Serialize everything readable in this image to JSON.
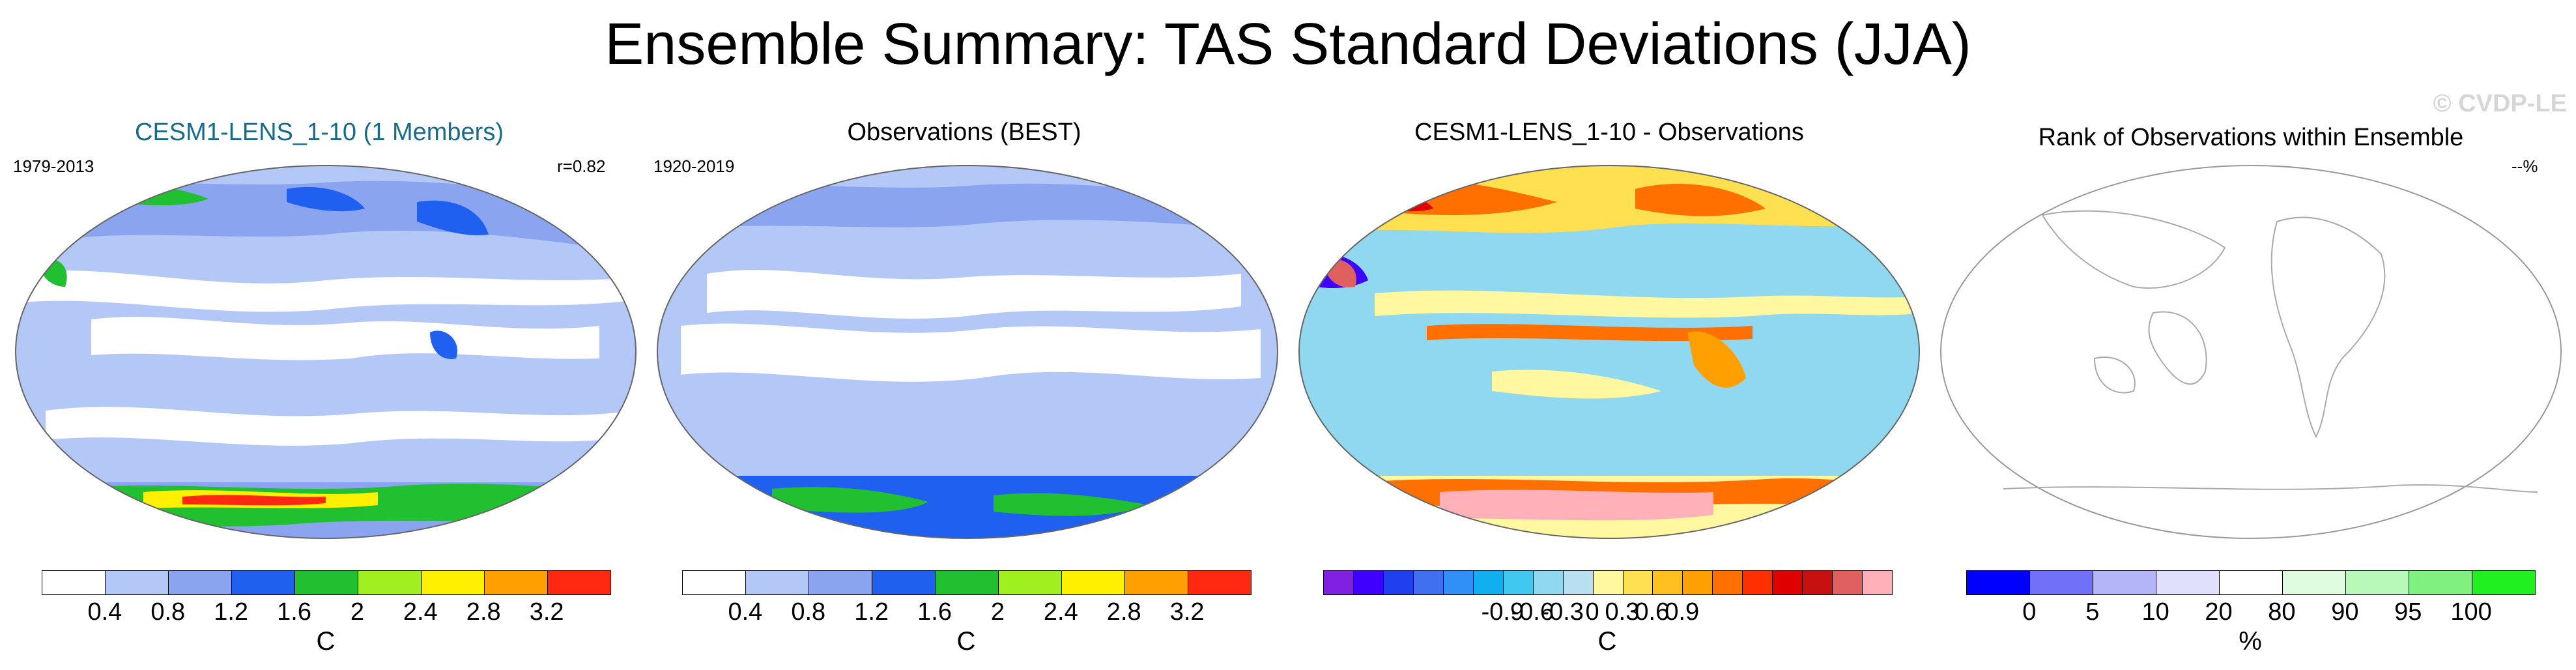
{
  "title": "Ensemble Summary: TAS Standard Deviations (JJA)",
  "watermark": "© CVDP-LE",
  "panels": [
    {
      "title": "CESM1-LENS_1-10 (1 Members)",
      "title_color": "#1a6a8a",
      "left_label": "1979-2013",
      "right_label": "r=0.82",
      "colorbar": {
        "colors": [
          "#ffffff",
          "#b4c8f8",
          "#8aa4f0",
          "#2060f0",
          "#20c030",
          "#a0f020",
          "#fff000",
          "#ffa000",
          "#ff2810"
        ],
        "ticks": [
          "0.4",
          "0.8",
          "1.2",
          "1.6",
          "2",
          "2.4",
          "2.8",
          "3.2"
        ],
        "unit": "C"
      }
    },
    {
      "title": "Observations (BEST)",
      "title_color": "#000000",
      "left_label": "1920-2019",
      "right_label": "",
      "colorbar": {
        "colors": [
          "#ffffff",
          "#b4c8f8",
          "#8aa4f0",
          "#2060f0",
          "#20c030",
          "#a0f020",
          "#fff000",
          "#ffa000",
          "#ff2810"
        ],
        "ticks": [
          "0.4",
          "0.8",
          "1.2",
          "1.6",
          "2",
          "2.4",
          "2.8",
          "3.2"
        ],
        "unit": "C"
      }
    },
    {
      "title": "CESM1-LENS_1-10 - Observations",
      "title_color": "#000000",
      "left_label": "",
      "right_label": "",
      "colorbar": {
        "colors": [
          "#8020e0",
          "#4000ff",
          "#2040f0",
          "#4070f0",
          "#3090f8",
          "#10b0f0",
          "#40c8f0",
          "#90d8f0",
          "#b8e0f0",
          "#fff8a0",
          "#ffe050",
          "#ffc020",
          "#ffa000",
          "#ff7000",
          "#ff3000",
          "#e00000",
          "#c81010",
          "#e06060",
          "#ffb0b8"
        ],
        "ticks": [
          "-0.9",
          "-0.6",
          "-0.3",
          "0",
          "0.3",
          "0.6",
          "0.9"
        ],
        "unit": "C"
      }
    },
    {
      "title": "Rank of Observations within Ensemble",
      "title_color": "#000000",
      "left_label": "",
      "right_label": "--%",
      "colorbar": {
        "colors": [
          "#0000ff",
          "#7070f8",
          "#b4b4f8",
          "#e0e0fc",
          "#ffffff",
          "#e0fce0",
          "#b8f8b8",
          "#80f080",
          "#20f020"
        ],
        "ticks": [
          "0",
          "5",
          "10",
          "20",
          "80",
          "90",
          "95",
          "100"
        ],
        "unit": "%"
      }
    }
  ],
  "chart_data": [
    {
      "type": "heatmap",
      "title": "CESM1-LENS_1-10 (1 Members)",
      "period": "1979-2013",
      "pattern_correlation": 0.82,
      "levels": [
        0.4,
        0.8,
        1.2,
        1.6,
        2,
        2.4,
        2.8,
        3.2
      ],
      "units": "C",
      "description_values": {
        "tropics_typical": 0.6,
        "high_latitude_land_max": 2.0,
        "antarctic_max": 3.4
      }
    },
    {
      "type": "heatmap",
      "title": "Observations (BEST)",
      "period": "1920-2019",
      "levels": [
        0.4,
        0.8,
        1.2,
        1.6,
        2,
        2.4,
        2.8,
        3.2
      ],
      "units": "C",
      "description_values": {
        "tropics_typical": 0.6,
        "antarctic_max": 2.0
      }
    },
    {
      "type": "heatmap",
      "title": "CESM1-LENS_1-10 - Observations",
      "levels": [
        -0.9,
        -0.6,
        -0.3,
        0,
        0.3,
        0.6,
        0.9
      ],
      "units": "C",
      "description_values": {
        "min": -1.0,
        "max": 1.0
      }
    },
    {
      "type": "heatmap",
      "title": "Rank of Observations within Ensemble",
      "levels": [
        0,
        5,
        10,
        20,
        80,
        90,
        95,
        100
      ],
      "units": "%",
      "rank_summary": "--%"
    }
  ]
}
